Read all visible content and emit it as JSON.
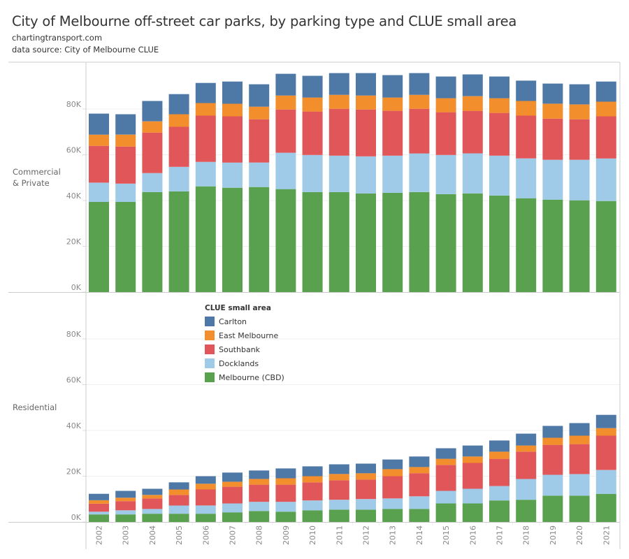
{
  "header": {
    "title": "City of Melbourne off-street car parks, by parking type and CLUE small area",
    "subtitle1": "chartingtransport.com",
    "subtitle2": "data source: City of Melbourne CLUE"
  },
  "legend": {
    "title": "CLUE small area",
    "items": [
      {
        "label": "Carlton",
        "color": "#4E79A7"
      },
      {
        "label": "East Melbourne",
        "color": "#F28E2B"
      },
      {
        "label": "Southbank",
        "color": "#E15759"
      },
      {
        "label": "Docklands",
        "color": "#A0CBE8"
      },
      {
        "label": "Melbourne (CBD)",
        "color": "#59A14F"
      }
    ]
  },
  "chart_data": {
    "type": "bar",
    "stacked": true,
    "title": "City of Melbourne off-street car parks, by parking type and CLUE small area",
    "xlabel": "",
    "ylabel": "",
    "categories": [
      "2002",
      "2003",
      "2004",
      "2005",
      "2006",
      "2007",
      "2008",
      "2009",
      "2010",
      "2011",
      "2012",
      "2013",
      "2014",
      "2015",
      "2016",
      "2017",
      "2018",
      "2019",
      "2020",
      "2021"
    ],
    "yticks": [
      "0K",
      "20K",
      "40K",
      "60K",
      "80K"
    ],
    "ylim": [
      0,
      100000
    ],
    "grid": true,
    "legend_position": "inside-bottom-panel",
    "series_order_bottom_up": [
      "Melbourne (CBD)",
      "Docklands",
      "Southbank",
      "East Melbourne",
      "Carlton"
    ],
    "panels": [
      {
        "name": "Commercial & Private",
        "series": [
          {
            "name": "Melbourne (CBD)",
            "color": "#59A14F",
            "values": [
              39400,
              39400,
              43700,
              44000,
              46200,
              45600,
              45900,
              45000,
              43700,
              43700,
              43100,
              43400,
              43700,
              42800,
              43100,
              42200,
              41000,
              40400,
              40100,
              39800
            ]
          },
          {
            "name": "Docklands",
            "color": "#A0CBE8",
            "values": [
              8400,
              8000,
              8300,
              10700,
              10700,
              11000,
              10700,
              15900,
              16200,
              15900,
              16200,
              16200,
              16900,
              17100,
              17500,
              17400,
              17400,
              17400,
              17700,
              18600
            ]
          },
          {
            "name": "Southbank",
            "color": "#E15759",
            "values": [
              16100,
              16200,
              17700,
              17500,
              20200,
              20200,
              18900,
              18900,
              19000,
              20500,
              20500,
              19600,
              19500,
              18700,
              18600,
              18700,
              18700,
              18000,
              17700,
              18400
            ]
          },
          {
            "name": "East Melbourne",
            "color": "#F28E2B",
            "values": [
              4900,
              5200,
              4900,
              5500,
              5500,
              5500,
              5500,
              6100,
              6100,
              6100,
              6100,
              5800,
              6100,
              6100,
              6400,
              6400,
              6400,
              6500,
              6500,
              6400
            ]
          },
          {
            "name": "Carlton",
            "color": "#4E79A7",
            "values": [
              9200,
              8900,
              8900,
              8800,
              8800,
              9700,
              9800,
              9500,
              9500,
              9500,
              9800,
              9800,
              9500,
              9500,
              9500,
              9500,
              8900,
              8800,
              8800,
              8800
            ]
          }
        ]
      },
      {
        "name": "Residential",
        "series": [
          {
            "name": "Melbourne (CBD)",
            "color": "#59A14F",
            "values": [
              3300,
              3300,
              3600,
              3600,
              3600,
              4200,
              4800,
              4500,
              5100,
              5400,
              5400,
              5700,
              5700,
              8100,
              8100,
              9400,
              9700,
              11500,
              11500,
              12300
            ]
          },
          {
            "name": "Docklands",
            "color": "#A0CBE8",
            "values": [
              1200,
              1800,
              2100,
              3600,
              3600,
              3900,
              4000,
              4300,
              4300,
              4300,
              4600,
              4600,
              5500,
              5500,
              6400,
              6300,
              9100,
              9100,
              9400,
              10400
            ]
          },
          {
            "name": "Southbank",
            "color": "#E15759",
            "values": [
              3500,
              4000,
              4600,
              4600,
              7000,
              7300,
              7500,
              7500,
              7900,
              8500,
              8500,
              9700,
              10100,
              11300,
              11300,
              11900,
              11900,
              13100,
              13100,
              15000
            ]
          },
          {
            "name": "East Melbourne",
            "color": "#F28E2B",
            "values": [
              1500,
              1500,
              1500,
              2400,
              2500,
              2200,
              2500,
              2800,
              2700,
              2800,
              2800,
              3100,
              2700,
              2700,
              2800,
              3100,
              2700,
              3100,
              3700,
              3300
            ]
          },
          {
            "name": "Carlton",
            "color": "#4E79A7",
            "values": [
              2800,
              3000,
              2700,
              3100,
              3300,
              4000,
              3700,
              4300,
              4300,
              4200,
              4200,
              4200,
              4600,
              4600,
              4800,
              4900,
              5200,
              5200,
              5500,
              5800
            ]
          }
        ]
      }
    ]
  }
}
